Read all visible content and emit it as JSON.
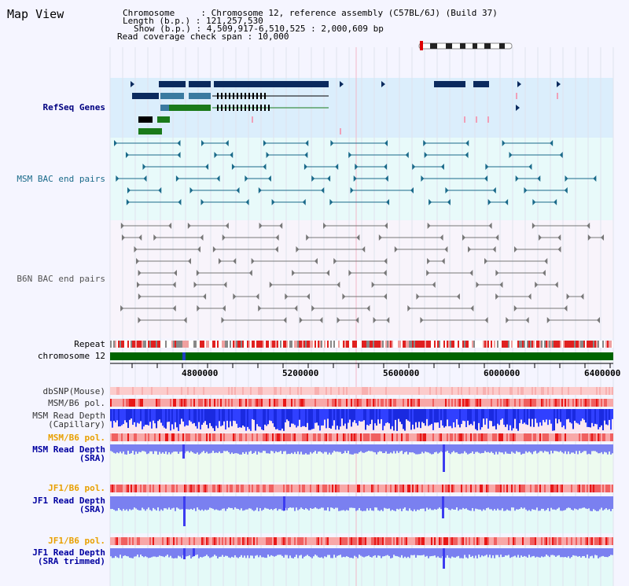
{
  "page": {
    "title": "Map View"
  },
  "info": {
    "chromosome": "Chromosome     : Chromosome 12, reference assembly (C57BL/6J) (Build 37)",
    "length": "Length (b.p.) : 121,257,530",
    "show": "Show (b.p.) : 4,509,917-6,510,525 : 2,000,609 bp",
    "coverage": "Read coverage check span : 10,000"
  },
  "tracks": {
    "refseq": "RefSeq Genes",
    "msm_bac": "MSM BAC end pairs",
    "b6n_bac": "B6N BAC end pairs",
    "repeat": "Repeat",
    "chromosome": "chromosome 12",
    "dbsnp": "dbSNP(Mouse)",
    "msm_b6_pol_1": "MSM/B6 pol.",
    "msm_read_depth_cap": "MSM Read Depth\n(Capillary)",
    "msm_b6_pol_2": "MSM/B6 pol.",
    "msm_read_depth_sra": "MSM Read Depth\n(SRA)",
    "jf1_b6_pol_1": "JF1/B6 pol.",
    "jf1_read_depth_sra": "JF1 Read Depth\n(SRA)",
    "jf1_b6_pol_2": "JF1/B6 pol.",
    "jf1_read_depth_trim": "JF1 Read Depth\n(SRA trimmed)"
  },
  "axis": {
    "ticks": [
      "4800000",
      "5200000",
      "5600000",
      "6000000",
      "6400000"
    ]
  },
  "colors": {
    "refseq_label": "#000080",
    "msm_label": "#1a6a8a",
    "b6n_label": "#555555",
    "pol_label": "#e8a000",
    "depth_label": "#0000a0",
    "gene_dark": "#0b2a5e",
    "gene_mid": "#3a7aa0",
    "gene_green": "#1a7a1a",
    "chromosome_bar": "#006400"
  }
}
